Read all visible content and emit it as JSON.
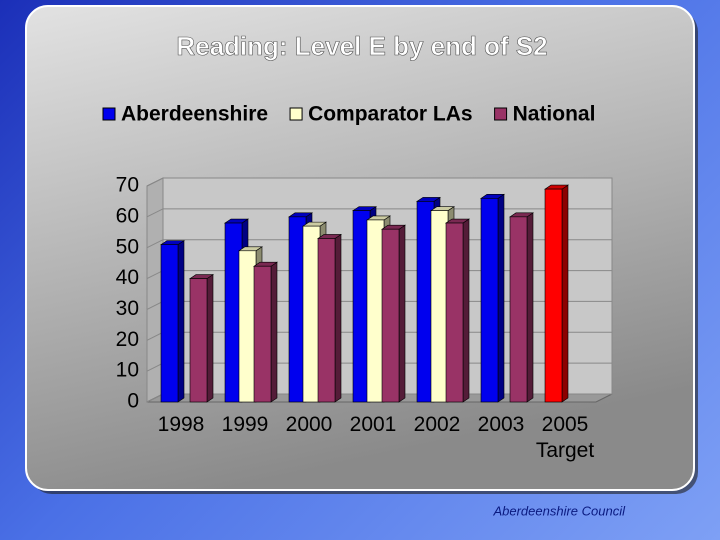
{
  "chart_data": {
    "type": "bar3d",
    "title": "Reading: Level E by end of S2",
    "categories": [
      "1998",
      "1999",
      "2000",
      "2001",
      "2002",
      "2003",
      "2005 Target"
    ],
    "series": [
      {
        "name": "Aberdeenshire",
        "color": "#0000ee",
        "point_colors": [
          null,
          null,
          null,
          null,
          null,
          null,
          "#ff0000"
        ],
        "values": [
          51,
          58,
          60,
          62,
          65,
          66,
          69
        ]
      },
      {
        "name": "Comparator LAs",
        "color": "#ffffcc",
        "values": [
          null,
          49,
          57,
          59,
          62,
          null,
          null
        ]
      },
      {
        "name": "National",
        "color": "#993366",
        "values": [
          40,
          44,
          53,
          56,
          58,
          60,
          null
        ]
      }
    ],
    "ylim": [
      0,
      70
    ],
    "yticks": [
      0,
      10,
      20,
      30,
      40,
      50,
      60,
      70
    ],
    "grid": true,
    "legend": "top"
  },
  "footer": "Aberdeenshire Council"
}
